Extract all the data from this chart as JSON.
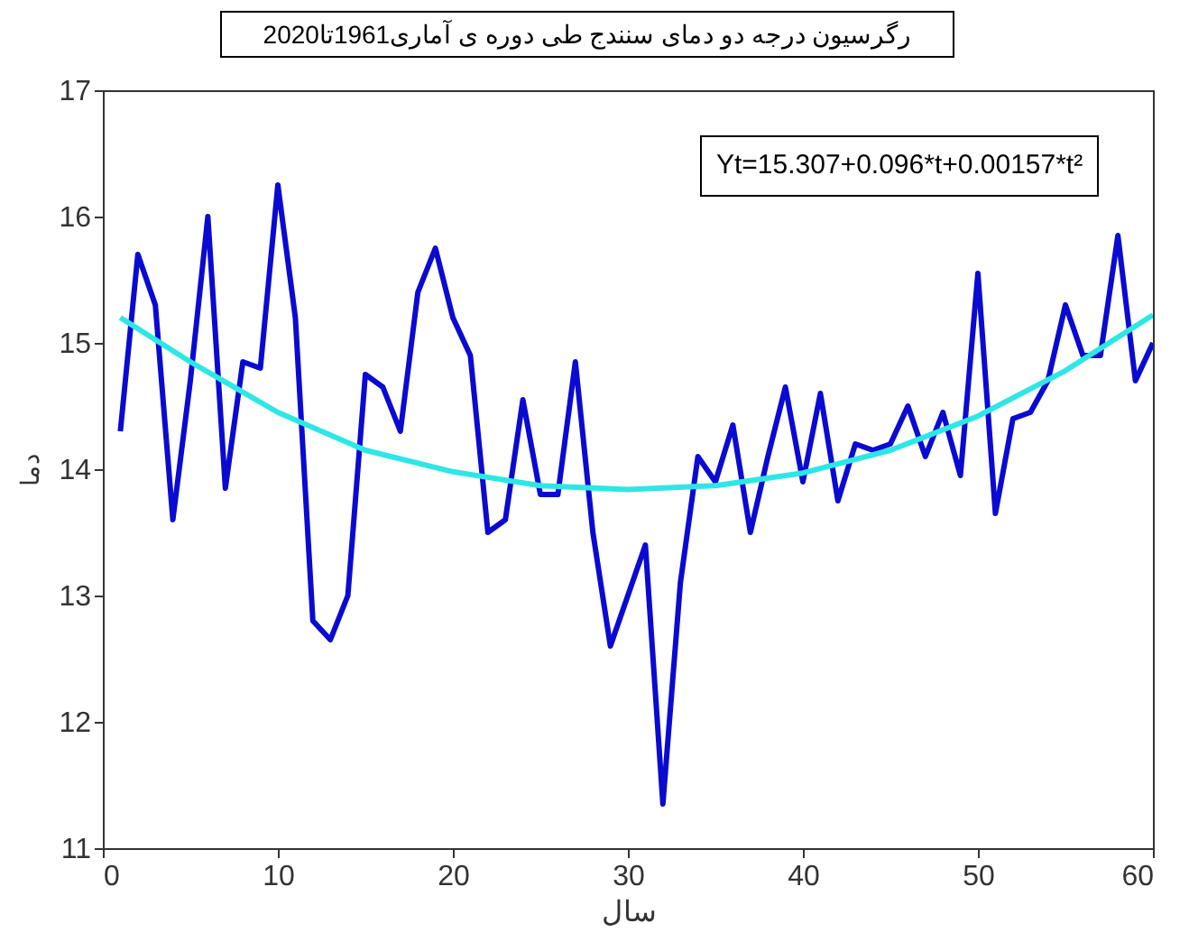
{
  "chart_data": {
    "type": "line",
    "title": "رگرسیون درجه دو دمای سنندج طی دوره ی آماری1961تا2020",
    "xlabel": "سال",
    "ylabel": "دما",
    "annotations": [
      "Yt=15.307+0.096*t+0.00157*t²"
    ],
    "xlim": [
      0,
      60
    ],
    "xticks": [
      0,
      10,
      20,
      30,
      40,
      50,
      60
    ],
    "ylim": [
      11,
      17
    ],
    "yticks": [
      11,
      12,
      13,
      14,
      15,
      16,
      17
    ],
    "grid": false,
    "marker": "none",
    "line_style": "solid",
    "series": [
      {
        "color": "#0a0ad2",
        "x": [
          1,
          2,
          3,
          4,
          5,
          6,
          7,
          8,
          9,
          10,
          11,
          12,
          13,
          14,
          15,
          16,
          17,
          18,
          19,
          20,
          21,
          22,
          23,
          24,
          25,
          26,
          27,
          28,
          29,
          30,
          31,
          32,
          33,
          34,
          35,
          36,
          37,
          38,
          39,
          40,
          41,
          42,
          43,
          44,
          45,
          46,
          47,
          48,
          49,
          50,
          51,
          52,
          53,
          54,
          55,
          56,
          57,
          58,
          59,
          60
        ],
        "values": [
          14.3,
          15.7,
          15.3,
          13.6,
          14.7,
          16.0,
          13.85,
          14.85,
          14.8,
          16.25,
          15.2,
          12.8,
          12.65,
          13.0,
          14.75,
          14.65,
          14.3,
          15.4,
          15.75,
          15.2,
          14.9,
          13.5,
          13.6,
          14.55,
          13.8,
          13.8,
          14.85,
          13.5,
          12.6,
          13.0,
          13.4,
          11.35,
          13.1,
          14.1,
          13.9,
          14.35,
          13.5,
          14.1,
          14.65,
          13.9,
          14.6,
          13.75,
          14.2,
          14.15,
          14.2,
          14.5,
          14.1,
          14.45,
          13.95,
          15.55,
          13.65,
          14.4,
          14.45,
          14.7,
          15.3,
          14.9,
          14.9,
          15.85,
          14.7,
          15.0
        ]
      },
      {
        "type": "line",
        "color": "#2ee6e6",
        "x": [
          1,
          5,
          10,
          15,
          20,
          25,
          30,
          35,
          40,
          45,
          50,
          55,
          60
        ],
        "values": [
          15.2,
          14.85,
          14.45,
          14.15,
          13.98,
          13.87,
          13.84,
          13.87,
          13.97,
          14.15,
          14.42,
          14.78,
          15.22
        ]
      }
    ]
  }
}
